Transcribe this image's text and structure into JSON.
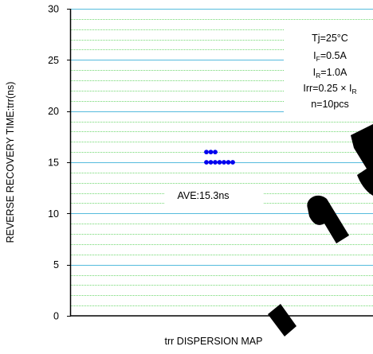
{
  "chart_data": {
    "type": "scatter",
    "title": "",
    "xlabel": "trr DISPERSION MAP",
    "ylabel": "REVERSE RECOVERY TIME:trr(ns)",
    "ylim": [
      0,
      30
    ],
    "yticks": [
      0,
      5,
      10,
      15,
      20,
      25,
      30
    ],
    "minor_grid_step": 1,
    "grid": true,
    "series": [
      {
        "color": "#0000ee",
        "points": [
          {
            "rank": 0,
            "y": 16
          },
          {
            "rank": 1,
            "y": 16
          },
          {
            "rank": 2,
            "y": 16
          },
          {
            "rank": 0,
            "y": 15
          },
          {
            "rank": 1,
            "y": 15
          },
          {
            "rank": 2,
            "y": 15
          },
          {
            "rank": 3,
            "y": 15
          },
          {
            "rank": 4,
            "y": 15
          },
          {
            "rank": 5,
            "y": 15
          },
          {
            "rank": 6,
            "y": 15
          }
        ]
      }
    ],
    "annotations": {
      "average": "AVE:15.3ns",
      "conditions": {
        "tj": "Tj=25°C",
        "if_main": "I",
        "if_sub": "F",
        "if_rest": "=0.5A",
        "ir_main": "I",
        "ir_sub": "R",
        "ir_rest": "=1.0A",
        "irr_main": "Irr=0.25 × I",
        "irr_sub": "R",
        "n": "n=10pcs"
      }
    }
  },
  "colors": {
    "major_grid": "#55bbdd",
    "minor_grid": "#44cc44",
    "marker": "#0000ee",
    "axis": "#000000"
  }
}
